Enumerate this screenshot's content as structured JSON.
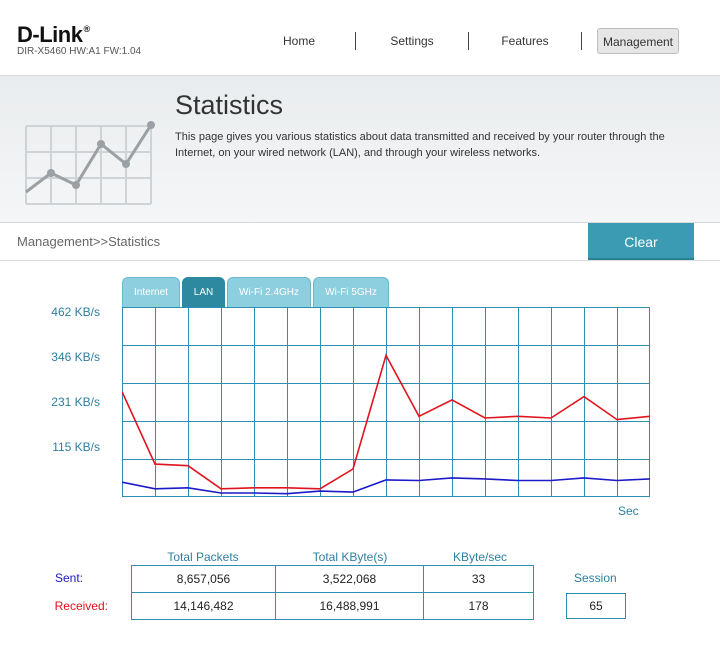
{
  "header": {
    "logo": "D-Link",
    "model_info": "DIR-X5460 HW:A1 FW:1.04",
    "nav": [
      {
        "label": "Home",
        "active": false
      },
      {
        "label": "Settings",
        "active": false
      },
      {
        "label": "Features",
        "active": false
      },
      {
        "label": "Management",
        "active": true
      }
    ]
  },
  "banner": {
    "title": "Statistics",
    "description": "This page gives you various statistics about data transmitted and received by your router through the Internet, on your wired network (LAN), and through your wireless networks."
  },
  "breadcrumb": "Management>>Statistics",
  "clear_label": "Clear",
  "tabs": [
    {
      "label": "Internet",
      "active": false
    },
    {
      "label": "LAN",
      "active": true
    },
    {
      "label": "Wi-Fi 2.4GHz",
      "active": false
    },
    {
      "label": "Wi-Fi 5GHz",
      "active": false
    }
  ],
  "colors": {
    "accent": "#3a9bb3",
    "received": "#e0141e",
    "sent": "#1a1ac8",
    "grid": "#2e8fae"
  },
  "chart_data": {
    "type": "line",
    "title": "",
    "ylabel": "",
    "xlabel": "Sec",
    "ylim": [
      0,
      577
    ],
    "yticks": [
      {
        "value": 115,
        "label": "115 KB/s"
      },
      {
        "value": 231,
        "label": "231 KB/s"
      },
      {
        "value": 346,
        "label": "346 KB/s"
      },
      {
        "value": 462,
        "label": "462 KB/s"
      }
    ],
    "x": [
      0,
      1,
      2,
      3,
      4,
      5,
      6,
      7,
      8,
      9,
      10,
      11,
      12,
      13,
      14,
      15,
      16
    ],
    "series": [
      {
        "key": "received",
        "values": [
          320,
          100,
          95,
          25,
          28,
          28,
          25,
          85,
          430,
          245,
          295,
          240,
          245,
          240,
          305,
          235,
          245
        ]
      },
      {
        "key": "sent",
        "values": [
          45,
          25,
          28,
          12,
          12,
          10,
          18,
          15,
          52,
          50,
          58,
          55,
          50,
          50,
          58,
          50,
          55
        ]
      }
    ]
  },
  "stats": {
    "headers": [
      "Total Packets",
      "Total KByte(s)",
      "KByte/sec"
    ],
    "rows": [
      {
        "label": "Sent:",
        "values": [
          "8,657,056",
          "3,522,068",
          "33"
        ]
      },
      {
        "label": "Received:",
        "values": [
          "14,146,482",
          "16,488,991",
          "178"
        ]
      }
    ],
    "session_label": "Session",
    "session_value": "65"
  }
}
